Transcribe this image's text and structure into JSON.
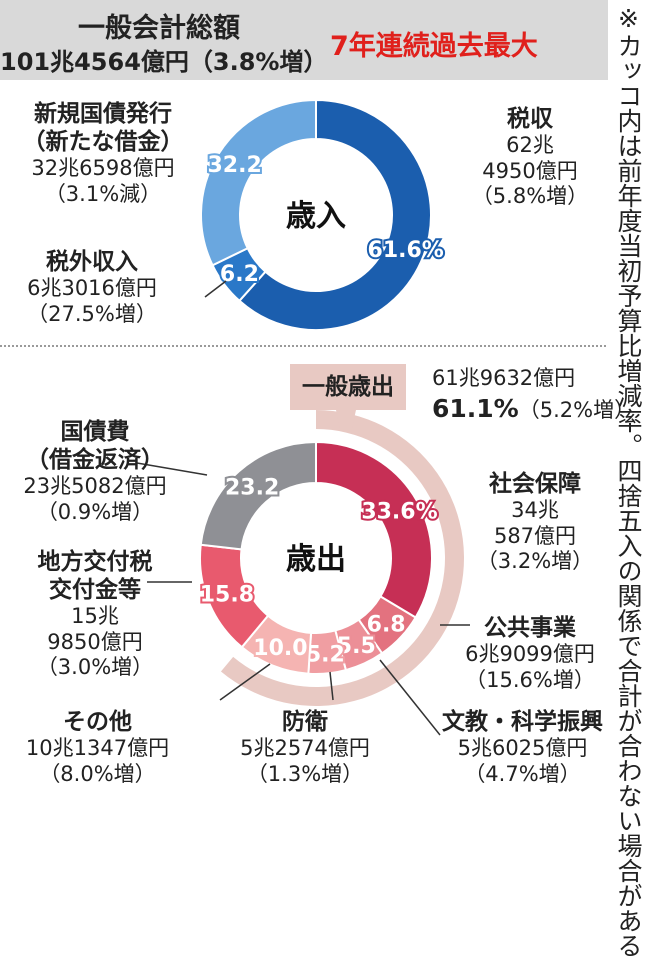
{
  "header": {
    "title": "一般会計総額",
    "total": "101兆4564億円（3.8%増）",
    "highlight": "7年連続過去最大"
  },
  "note": "※カッコ内は前年度当初予算比増減率。四捨五入の関係で合計が合わない場合がある",
  "colors": {
    "revenue_tax": "#1b5eae",
    "revenue_bond": "#6aa7df",
    "revenue_other": "#2a78c8",
    "social": "#c62f55",
    "public_works": "#e3727f",
    "education": "#ec8f97",
    "defense": "#f09ea2",
    "other": "#f5b4b2",
    "local": "#e85a6e",
    "debt": "#8f9095",
    "general_band": "#e8c9c3",
    "highlight_red": "#e0201c"
  },
  "chart_data": [
    {
      "type": "pie",
      "center_label": "歳入",
      "slices": [
        {
          "key": "tax",
          "name": "税収",
          "value": 61.6,
          "label": "61.6%",
          "amount_lines": [
            "62兆",
            "4950億円"
          ],
          "change": "（5.8%増）",
          "color_key": "revenue_tax"
        },
        {
          "key": "other_income",
          "name": "税外収入",
          "value": 6.2,
          "label": "6.2",
          "amount_lines": [
            "6兆3016億円"
          ],
          "change": "（27.5%増）",
          "color_key": "revenue_other"
        },
        {
          "key": "bond",
          "name": "新規国債発行\n（新たな借金）",
          "value": 32.2,
          "label": "32.2",
          "amount_lines": [
            "32兆6598億円"
          ],
          "change": "（3.1%減）",
          "color_key": "revenue_bond"
        }
      ]
    },
    {
      "type": "pie",
      "center_label": "歳出",
      "general_expenditure": {
        "label": "一般歳出",
        "amount": "61兆9632億円",
        "share": "61.1%",
        "change": "（5.2%増）",
        "value": 61.1
      },
      "slices": [
        {
          "key": "social",
          "name": "社会保障",
          "value": 33.6,
          "label": "33.6%",
          "amount_lines": [
            "34兆",
            "587億円"
          ],
          "change": "（3.2%増）",
          "color_key": "social"
        },
        {
          "key": "public_works",
          "name": "公共事業",
          "value": 6.8,
          "label": "6.8",
          "amount_lines": [
            "6兆9099億円"
          ],
          "change": "（15.6%増）",
          "color_key": "public_works"
        },
        {
          "key": "education",
          "name": "文教・科学振興",
          "value": 5.5,
          "label": "5.5",
          "amount_lines": [
            "5兆6025億円"
          ],
          "change": "（4.7%増）",
          "color_key": "education"
        },
        {
          "key": "defense",
          "name": "防衛",
          "value": 5.2,
          "label": "5.2",
          "amount_lines": [
            "5兆2574億円"
          ],
          "change": "（1.3%増）",
          "color_key": "defense"
        },
        {
          "key": "other",
          "name": "その他",
          "value": 10.0,
          "label": "10.0",
          "amount_lines": [
            "10兆1347億円"
          ],
          "change": "（8.0%増）",
          "color_key": "other"
        },
        {
          "key": "local",
          "name": "地方交付税\n交付金等",
          "value": 15.8,
          "label": "15.8",
          "amount_lines": [
            "15兆",
            "9850億円"
          ],
          "change": "（3.0%増）",
          "color_key": "local"
        },
        {
          "key": "debt",
          "name": "国債費\n（借金返済）",
          "value": 23.2,
          "label": "23.2",
          "amount_lines": [
            "23兆5082億円"
          ],
          "change": "（0.9%増）",
          "color_key": "debt"
        }
      ]
    }
  ]
}
